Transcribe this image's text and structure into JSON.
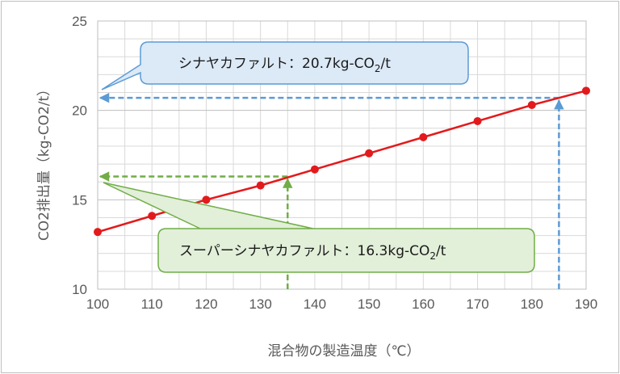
{
  "chart_data": {
    "type": "line",
    "x": [
      100,
      110,
      120,
      130,
      140,
      150,
      160,
      170,
      180,
      190
    ],
    "series": [
      {
        "values": [
          13.2,
          14.1,
          15.0,
          15.8,
          16.7,
          17.6,
          18.5,
          19.4,
          20.3,
          21.1
        ],
        "color": "#e31a1c"
      }
    ],
    "xlabel": "混合物の製造温度（℃）",
    "ylabel": "CO2排出量（kg-CO2/t）",
    "xlim": [
      100,
      190
    ],
    "ylim": [
      10,
      25
    ],
    "xticks": [
      "100",
      "110",
      "120",
      "130",
      "140",
      "150",
      "160",
      "170",
      "180",
      "190"
    ],
    "yticks": [
      "10",
      "15",
      "20",
      "25"
    ],
    "grid": true,
    "annotations": [
      {
        "id": "asphalt",
        "label": "シナヤカファルト：",
        "value_prefix": "20.7kg-CO",
        "value_sub": "2",
        "value_suffix": "/t",
        "value": 20.7,
        "temperature": 185,
        "color": "#5b9bd5",
        "fill": "#dce9f7"
      },
      {
        "id": "super-asphalt",
        "label": "スーパーシナヤカファルト：",
        "value_prefix": "16.3kg-CO",
        "value_sub": "2",
        "value_suffix": "/t",
        "value": 16.3,
        "temperature": 135,
        "color": "#70ad47",
        "fill": "#e2efd9"
      }
    ]
  }
}
